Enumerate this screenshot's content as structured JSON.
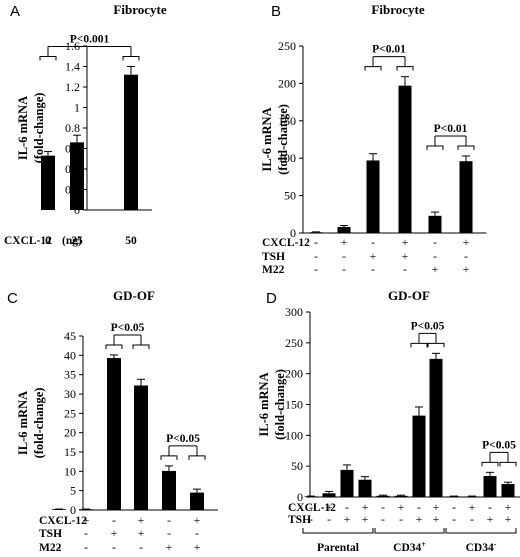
{
  "chart_data": [
    {
      "type": "bar",
      "panel": "A",
      "title": "Fibrocyte",
      "ylabel_lines": [
        "IL-6 mRNA",
        "(fold-change)"
      ],
      "ylim": [
        0,
        1.6
      ],
      "yticks": [
        "0",
        "0.2",
        "0.4",
        "0.6",
        "0.8",
        "1",
        "1.2",
        "1.4",
        "1.6"
      ],
      "condition_label": "CXCL-12",
      "condition_unit": "(ng)",
      "categories": [
        "0",
        "25",
        "50"
      ],
      "values": [
        0.53,
        0.66,
        1.32
      ],
      "errors": [
        0.04,
        0.07,
        0.08
      ],
      "significance": [
        {
          "text": "P<0.001",
          "between": [
            0,
            2
          ]
        }
      ]
    },
    {
      "type": "bar",
      "panel": "B",
      "title": "Fibrocyte",
      "ylabel_lines": [
        "IL-6 mRNA",
        "(fold-change)"
      ],
      "ylim": [
        0,
        250
      ],
      "yticks": [
        "0",
        "50",
        "100",
        "150",
        "200",
        "250"
      ],
      "condition_rows": [
        {
          "label": "CXCL-12",
          "signs": [
            "-",
            "+",
            "-",
            "+",
            "-",
            "+"
          ]
        },
        {
          "label": "TSH",
          "signs": [
            "-",
            "-",
            "+",
            "+",
            "-",
            "-"
          ]
        },
        {
          "label": "M22",
          "signs": [
            "-",
            "-",
            "-",
            "-",
            "+",
            "+"
          ]
        }
      ],
      "values": [
        1,
        8,
        97,
        197,
        23,
        96
      ],
      "errors": [
        0.5,
        2,
        9,
        12,
        5,
        7
      ],
      "significance": [
        {
          "text": "P<0.01",
          "between": [
            2,
            3
          ]
        },
        {
          "text": "P<0.01",
          "between": [
            4,
            5
          ]
        }
      ]
    },
    {
      "type": "bar",
      "panel": "C",
      "title": "GD-OF",
      "ylabel_lines": [
        "IL-6 mRNA",
        "(fold-change)"
      ],
      "ylim": [
        0,
        45
      ],
      "yticks": [
        "0",
        "5",
        "10",
        "15",
        "20",
        "25",
        "30",
        "35",
        "40",
        "45"
      ],
      "condition_rows": [
        {
          "label": "CXCL-12",
          "signs": [
            "-",
            "+",
            "-",
            "+",
            "-",
            "+"
          ]
        },
        {
          "label": "TSH",
          "signs": [
            "-",
            "-",
            "+",
            "+",
            "-",
            "-"
          ]
        },
        {
          "label": "M22",
          "signs": [
            "-",
            "-",
            "-",
            "-",
            "+",
            "+"
          ]
        }
      ],
      "values": [
        0.2,
        0.2,
        39.3,
        32.2,
        10.1,
        4.5
      ],
      "errors": [
        0.05,
        0.05,
        0.8,
        1.6,
        1.3,
        0.9
      ],
      "significance": [
        {
          "text": "P<0.05",
          "between": [
            2,
            3
          ]
        },
        {
          "text": "P<0.05",
          "between": [
            4,
            5
          ]
        }
      ]
    },
    {
      "type": "bar",
      "panel": "D",
      "title": "GD-OF",
      "ylabel_lines": [
        "IL-6 mRNA",
        "(fold-change)"
      ],
      "ylim": [
        0,
        300
      ],
      "yticks": [
        "0",
        "50",
        "100",
        "150",
        "200",
        "250",
        "300"
      ],
      "condition_rows": [
        {
          "label": "CXCL-12",
          "signs": [
            "-",
            "+",
            "-",
            "+",
            "-",
            "+",
            "-",
            "+",
            "-",
            "+",
            "-",
            "+"
          ]
        },
        {
          "label": "TSH",
          "signs": [
            "-",
            "-",
            "+",
            "+",
            "-",
            "-",
            "+",
            "+",
            "-",
            "-",
            "+",
            "+"
          ]
        }
      ],
      "values": [
        1,
        6,
        44,
        28,
        2,
        2,
        132,
        224,
        1,
        1,
        34,
        21
      ],
      "errors": [
        0.5,
        3,
        8,
        5,
        1,
        1,
        14,
        9,
        0.5,
        0.5,
        6,
        3
      ],
      "groups": [
        {
          "label": "Parental",
          "sup": "",
          "range": [
            0,
            3
          ]
        },
        {
          "label": "CD34",
          "sup": "+",
          "range": [
            4,
            7
          ]
        },
        {
          "label": "CD34",
          "sup": "-",
          "range": [
            8,
            11
          ]
        }
      ],
      "significance": [
        {
          "text": "P<0.05",
          "between": [
            6,
            7
          ]
        },
        {
          "text": "P<0.05",
          "between": [
            10,
            11
          ]
        }
      ]
    }
  ]
}
